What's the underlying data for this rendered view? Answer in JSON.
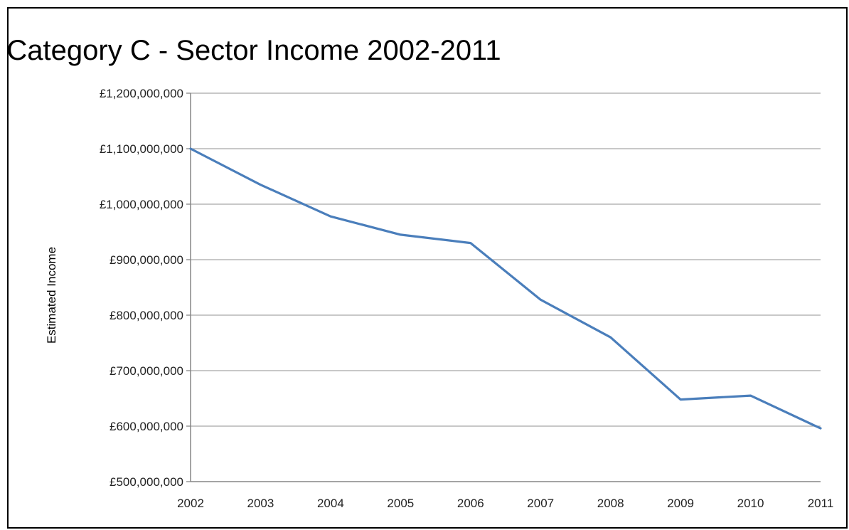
{
  "chart_data": {
    "type": "line",
    "title": "Category C - Sector Income 2002-2011",
    "xlabel": "",
    "ylabel": "Estimated Income",
    "x": [
      "2002",
      "2003",
      "2004",
      "2005",
      "2006",
      "2007",
      "2008",
      "2009",
      "2010",
      "2011"
    ],
    "series": [
      {
        "values": [
          1100000000,
          1035000000,
          978000000,
          945000000,
          930000000,
          828000000,
          760000000,
          648000000,
          655000000,
          596000000
        ]
      }
    ],
    "ylim": [
      500000000,
      1200000000
    ],
    "y_ticks": [
      500000000,
      600000000,
      700000000,
      800000000,
      900000000,
      1000000000,
      1100000000,
      1200000000
    ],
    "y_tick_labels": [
      "£500,000,000",
      "£600,000,000",
      "£700,000,000",
      "£800,000,000",
      "£900,000,000",
      "£1,000,000,000",
      "£1,100,000,000",
      "£1,200,000,000"
    ],
    "grid": "horizontal",
    "legend": "none",
    "colors": {
      "line": "#4a7ebb",
      "grid": "#a6a6a6",
      "axis": "#868686"
    }
  }
}
